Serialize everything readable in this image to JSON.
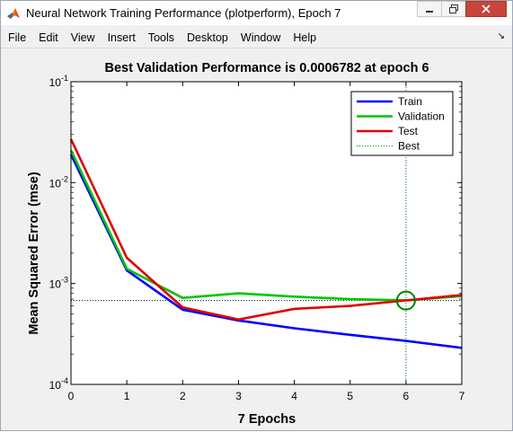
{
  "window": {
    "title": "Neural Network Training Performance (plotperform), Epoch 7",
    "icon": "matlab-icon"
  },
  "menu": {
    "items": [
      "File",
      "Edit",
      "View",
      "Insert",
      "Tools",
      "Desktop",
      "Window",
      "Help"
    ]
  },
  "colors": {
    "train": "#0000ff",
    "validation": "#00c400",
    "test": "#e00000",
    "best": "#008000"
  },
  "chart_data": {
    "type": "line",
    "title": "Best Validation Performance is 0.0006782 at epoch 6",
    "xlabel": "7 Epochs",
    "ylabel": "Mean Squared Error  (mse)",
    "xlim": [
      0,
      7
    ],
    "ylim": [
      0.0001,
      0.1
    ],
    "yscale": "log",
    "xticks": [
      "0",
      "1",
      "2",
      "3",
      "4",
      "5",
      "6",
      "7"
    ],
    "yticks": [
      {
        "value": 0.1,
        "base": "10",
        "exp": "-1"
      },
      {
        "value": 0.01,
        "base": "10",
        "exp": "-2"
      },
      {
        "value": 0.001,
        "base": "10",
        "exp": "-3"
      },
      {
        "value": 0.0001,
        "base": "10",
        "exp": "-4"
      }
    ],
    "legend_position": "top-right",
    "x": [
      0,
      1,
      2,
      3,
      4,
      5,
      6,
      7
    ],
    "series": [
      {
        "name": "Train",
        "key": "train",
        "values": [
          0.019,
          0.00135,
          0.00055,
          0.00043,
          0.00036,
          0.00031,
          0.00027,
          0.00023
        ]
      },
      {
        "name": "Validation",
        "key": "validation",
        "values": [
          0.021,
          0.0014,
          0.00072,
          0.0008,
          0.00074,
          0.0007,
          0.00068,
          0.00075
        ]
      },
      {
        "name": "Test",
        "key": "test",
        "values": [
          0.027,
          0.0018,
          0.00058,
          0.00044,
          0.00056,
          0.0006,
          0.00068,
          0.00077
        ]
      }
    ],
    "best": {
      "name": "Best",
      "epoch": 6,
      "value": 0.0006782
    }
  }
}
